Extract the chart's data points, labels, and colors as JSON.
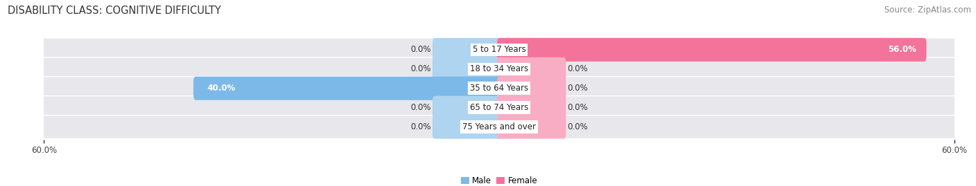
{
  "title": "DISABILITY CLASS: COGNITIVE DIFFICULTY",
  "source": "Source: ZipAtlas.com",
  "categories": [
    "5 to 17 Years",
    "18 to 34 Years",
    "35 to 64 Years",
    "65 to 74 Years",
    "75 Years and over"
  ],
  "male_values": [
    0.0,
    0.0,
    40.0,
    0.0,
    0.0
  ],
  "female_values": [
    56.0,
    0.0,
    0.0,
    0.0,
    0.0
  ],
  "male_color": "#7cb9e8",
  "female_color": "#f4739a",
  "male_color_light": "#aed4f0",
  "female_color_light": "#f9adc5",
  "bar_bg_color": "#e8e8ec",
  "axis_max": 60.0,
  "title_fontsize": 10.5,
  "label_fontsize": 8.5,
  "tick_fontsize": 8.5,
  "source_fontsize": 8.5,
  "bar_height": 0.62,
  "center_label_color": "#222222",
  "value_label_dark": "#333333",
  "value_label_white": "#ffffff"
}
